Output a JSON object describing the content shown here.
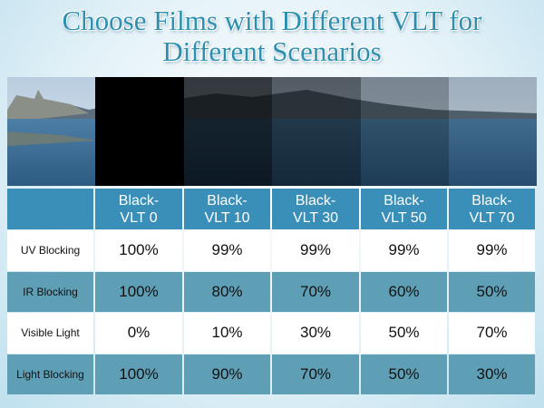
{
  "header": {
    "title": "Choose Films with Different VLT for Different Scenarios"
  },
  "table": {
    "columns": [
      "Black-VLT 0",
      "Black-VLT 10",
      "Black-VLT 30",
      "Black-VLT 50",
      "Black-VLT 70"
    ],
    "rows": [
      [
        "UV Blocking",
        "100%",
        "99%",
        "99%",
        "99%",
        "99%"
      ],
      [
        "IR Blocking",
        "100%",
        "80%",
        "70%",
        "60%",
        "50%"
      ],
      [
        "Visible Light",
        "0%",
        "10%",
        "30%",
        "50%",
        "70%"
      ],
      [
        "Light Blocking",
        "100%",
        "90%",
        "70%",
        "50%",
        "30%"
      ]
    ]
  }
}
